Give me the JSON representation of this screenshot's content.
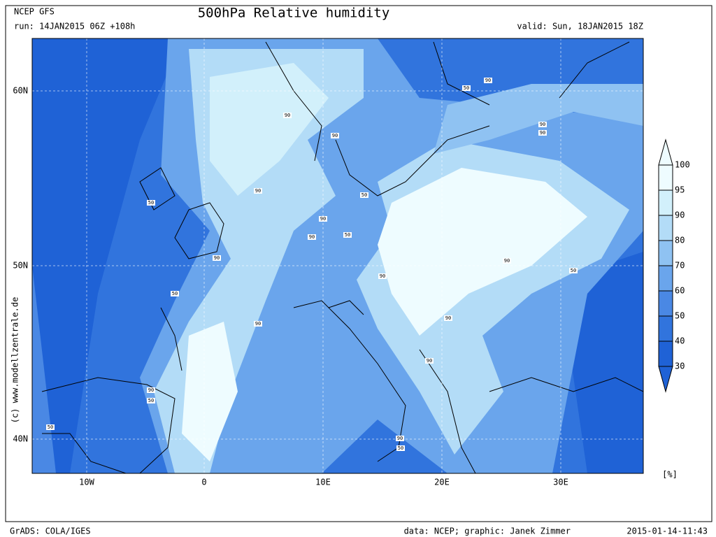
{
  "header": {
    "model": "NCEP GFS",
    "run": "run: 14JAN2015 06Z +108h",
    "title": "500hPa Relative humidity",
    "valid": "valid: Sun, 18JAN2015 18Z"
  },
  "map": {
    "lat_labels": [
      "60N",
      "50N",
      "40N"
    ],
    "lon_labels": [
      "10W",
      "0",
      "10E",
      "20E",
      "30E"
    ],
    "contour_labels": [
      90,
      50,
      90,
      90,
      90,
      90,
      90,
      50,
      50,
      90,
      90,
      50,
      90,
      90,
      50,
      90,
      50,
      90,
      90,
      90,
      90,
      50,
      50,
      90,
      50
    ]
  },
  "colorbar": {
    "levels": [
      100,
      95,
      90,
      80,
      70,
      60,
      50,
      40,
      30
    ],
    "colors": [
      "#eefcff",
      "#d2f0fb",
      "#b3dcf7",
      "#8fc2f2",
      "#6aa5ec",
      "#4a88e4",
      "#3174dd",
      "#1f62d6"
    ],
    "unit": "[%]"
  },
  "watermark": "(c) www.modellzentrale.de",
  "footer": {
    "left": "GrADS: COLA/IGES",
    "center": "data: NCEP; graphic: Janek Zimmer",
    "right": "2015-01-14-11:43"
  }
}
